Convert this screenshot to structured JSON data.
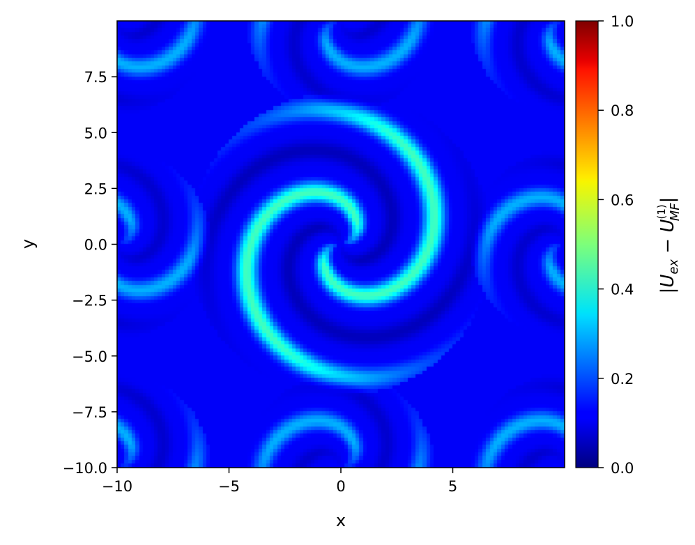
{
  "chart_data": {
    "type": "heatmap",
    "title": "",
    "xlabel": "x",
    "ylabel": "y",
    "xlim": [
      -10,
      10
    ],
    "ylim": [
      -10,
      10
    ],
    "xticks": [
      -10,
      -5,
      0,
      5
    ],
    "xtick_labels": [
      "−10",
      "−5",
      "0",
      "5"
    ],
    "yticks": [
      -10,
      -7.5,
      -5,
      -2.5,
      0,
      2.5,
      5,
      7.5
    ],
    "ytick_labels": [
      "−10.0",
      "−7.5",
      "−5.0",
      "−2.5",
      "0.0",
      "2.5",
      "5.0",
      "7.5"
    ],
    "colorbar": {
      "label_base": "|U",
      "label_sub1": "ex",
      "label_minus": " − U",
      "label_sup": "(1)",
      "label_sub2": "MF",
      "label_close": "|",
      "colormap": "jet",
      "range": [
        0,
        1
      ],
      "ticks": [
        0,
        0.2,
        0.4,
        0.6,
        0.8,
        1
      ],
      "tick_labels": [
        "0.0",
        "0.2",
        "0.4",
        "0.6",
        "0.8",
        "1.0"
      ]
    },
    "field": {
      "description_of_features": "central two-armed spiral",
      "center": [
        0,
        0
      ],
      "spiral_pitch": 4.0,
      "arm_peak_value": 0.32,
      "background_value": 0.12,
      "corner_spiral_centers": [
        [
          -10,
          10
        ],
        [
          10,
          10
        ],
        [
          -10,
          -10
        ],
        [
          10,
          -10
        ],
        [
          0,
          10
        ],
        [
          0,
          -10
        ],
        [
          -10,
          0
        ],
        [
          10,
          0
        ]
      ]
    },
    "grid": false,
    "grid_resolution": 120
  }
}
